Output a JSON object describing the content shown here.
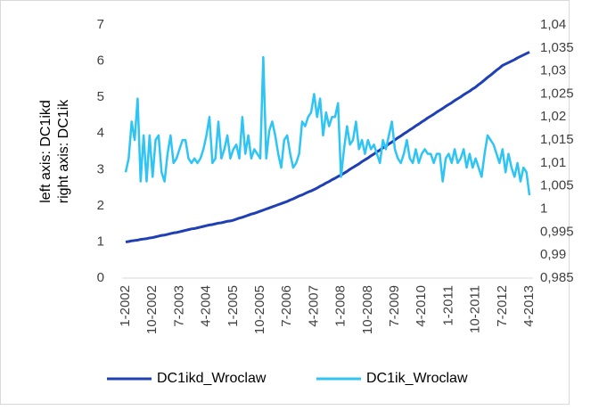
{
  "chart_data": {
    "type": "line",
    "ylabel": [
      "left axis: DC1ikd",
      "right axis: DC1ik"
    ],
    "categories": [
      "1-2002",
      null,
      null,
      null,
      null,
      null,
      null,
      null,
      null,
      "10-2002",
      null,
      null,
      null,
      null,
      null,
      null,
      null,
      null,
      "7-2003",
      null,
      null,
      null,
      null,
      null,
      null,
      null,
      null,
      "4-2004",
      null,
      null,
      null,
      null,
      null,
      null,
      null,
      null,
      "1-2005",
      null,
      null,
      null,
      null,
      null,
      null,
      null,
      null,
      "10-2005",
      null,
      null,
      null,
      null,
      null,
      null,
      null,
      null,
      "7-2006",
      null,
      null,
      null,
      null,
      null,
      null,
      null,
      null,
      "4-2007",
      null,
      null,
      null,
      null,
      null,
      null,
      null,
      null,
      "1-2008",
      null,
      null,
      null,
      null,
      null,
      null,
      null,
      null,
      "10-2008",
      null,
      null,
      null,
      null,
      null,
      null,
      null,
      null,
      "7-2009",
      null,
      null,
      null,
      null,
      null,
      null,
      null,
      null,
      "4-2010",
      null,
      null,
      null,
      null,
      null,
      null,
      null,
      null,
      "1-2011",
      null,
      null,
      null,
      null,
      null,
      null,
      null,
      null,
      "10-2011",
      null,
      null,
      null,
      null,
      null,
      null,
      null,
      null,
      "7-2012",
      null,
      null,
      null,
      null,
      null,
      null,
      null,
      null,
      "4-2013"
    ],
    "series": [
      {
        "name": "DC1ikd_Wroclaw",
        "color": "#1f3fb4",
        "axis": "y",
        "values": [
          1.0,
          1.01,
          1.03,
          1.04,
          1.05,
          1.07,
          1.08,
          1.09,
          1.11,
          1.12,
          1.14,
          1.16,
          1.18,
          1.19,
          1.21,
          1.23,
          1.25,
          1.26,
          1.28,
          1.3,
          1.32,
          1.34,
          1.36,
          1.37,
          1.39,
          1.41,
          1.43,
          1.45,
          1.47,
          1.48,
          1.5,
          1.52,
          1.53,
          1.55,
          1.57,
          1.58,
          1.6,
          1.63,
          1.66,
          1.68,
          1.71,
          1.74,
          1.77,
          1.79,
          1.82,
          1.85,
          1.88,
          1.91,
          1.94,
          1.97,
          2.0,
          2.03,
          2.06,
          2.09,
          2.12,
          2.16,
          2.19,
          2.23,
          2.27,
          2.3,
          2.34,
          2.38,
          2.41,
          2.45,
          2.49,
          2.54,
          2.58,
          2.63,
          2.67,
          2.72,
          2.76,
          2.81,
          2.85,
          2.9,
          2.95,
          3.01,
          3.06,
          3.11,
          3.16,
          3.22,
          3.27,
          3.32,
          3.38,
          3.43,
          3.49,
          3.54,
          3.6,
          3.65,
          3.71,
          3.76,
          3.82,
          3.88,
          3.93,
          3.99,
          4.04,
          4.1,
          4.15,
          4.21,
          4.26,
          4.32,
          4.37,
          4.43,
          4.48,
          4.53,
          4.59,
          4.64,
          4.69,
          4.75,
          4.8,
          4.85,
          4.91,
          4.96,
          5.01,
          5.07,
          5.12,
          5.17,
          5.23,
          5.28,
          5.35,
          5.41,
          5.48,
          5.55,
          5.61,
          5.68,
          5.75,
          5.81,
          5.88,
          5.92,
          5.96,
          6.0,
          6.04,
          6.09,
          6.13,
          6.17,
          6.21,
          6.25
        ]
      },
      {
        "name": "DC1ik_Wroclaw",
        "color": "#2ec4f4",
        "axis": "y2",
        "values": [
          1.008,
          1.011,
          1.019,
          1.015,
          1.024,
          1.006,
          1.016,
          1.006,
          1.016,
          1.007,
          1.015,
          1.016,
          1.008,
          1.006,
          1.012,
          1.016,
          1.01,
          1.011,
          1.013,
          1.015,
          1.015,
          1.011,
          1.01,
          1.011,
          1.01,
          1.011,
          1.013,
          1.016,
          1.02,
          1.01,
          1.011,
          1.019,
          1.011,
          1.013,
          1.016,
          1.011,
          1.013,
          1.014,
          1.011,
          1.02,
          1.012,
          1.016,
          1.011,
          1.013,
          1.012,
          1.011,
          1.033,
          1.011,
          1.017,
          1.019,
          1.016,
          1.012,
          1.009,
          1.015,
          1.016,
          1.012,
          1.009,
          1.01,
          1.012,
          1.019,
          1.018,
          1.02,
          1.021,
          1.025,
          1.02,
          1.024,
          1.016,
          1.021,
          1.018,
          1.02,
          1.02,
          1.023,
          1.007,
          1.013,
          1.018,
          1.014,
          1.015,
          1.019,
          1.013,
          1.015,
          1.012,
          1.015,
          1.013,
          1.014,
          1.012,
          1.01,
          1.015,
          1.013,
          1.016,
          1.019,
          1.013,
          1.011,
          1.01,
          1.012,
          1.015,
          1.011,
          1.01,
          1.013,
          1.01,
          1.012,
          1.013,
          1.012,
          1.012,
          1.01,
          1.012,
          1.012,
          1.006,
          1.011,
          1.012,
          1.01,
          1.013,
          1.01,
          1.011,
          1.013,
          1.009,
          1.012,
          1.009,
          1.011,
          1.009,
          1.007,
          1.012,
          1.016,
          1.015,
          1.014,
          1.012,
          1.01,
          1.013,
          1.008,
          1.012,
          1.009,
          1.007,
          1.01,
          1.006,
          1.009,
          1.008,
          1.003
        ]
      }
    ],
    "ylim": [
      0,
      7
    ],
    "yticks": [
      0,
      1,
      2,
      3,
      4,
      5,
      6,
      7
    ],
    "y2lim": [
      0.985,
      1.04
    ],
    "y2ticks": [
      {
        "value": 0.985,
        "label": "0,985"
      },
      {
        "value": 0.99,
        "label": "0,99"
      },
      {
        "value": 0.995,
        "label": "0,995"
      },
      1,
      {
        "value": 1.005,
        "label": "1,005"
      },
      {
        "value": 1.01,
        "label": "1,01"
      },
      {
        "value": 1.015,
        "label": "1,015"
      },
      {
        "value": 1.02,
        "label": "1,02"
      },
      {
        "value": 1.025,
        "label": "1,025"
      },
      {
        "value": 1.03,
        "label": "1,03"
      },
      {
        "value": 1.035,
        "label": "1,035"
      },
      {
        "value": 1.04,
        "label": "1,04"
      }
    ],
    "grid": false,
    "legend": "bottom"
  }
}
